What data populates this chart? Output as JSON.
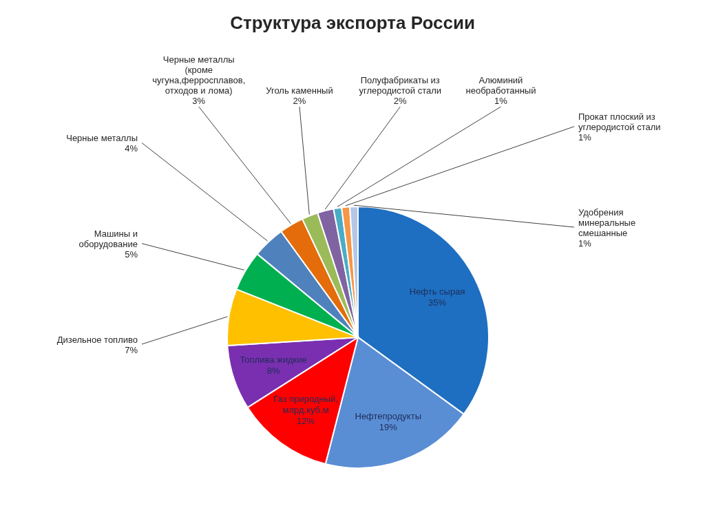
{
  "chart_data": {
    "type": "pie",
    "title": "Структура экспорта России",
    "categories": [
      "Нефть сырая",
      "Нефтепродукты",
      "Газ природный, млрд.куб.м",
      "Топлива жидкие",
      "Дизельное топливо",
      "Машины и оборудование",
      "Черные металлы",
      "Черные металлы (кроме чугуна,ферросплавов, отходов и лома)",
      "Уголь каменный",
      "Полуфабрикаты из углеродистой стали",
      "Алюминий необработанный",
      "Прокат плоский из углеродистой стали",
      "Удобрения минеральные смешанные"
    ],
    "values": [
      35,
      19,
      12,
      8,
      7,
      5,
      4,
      3,
      2,
      2,
      1,
      1,
      1
    ],
    "colors": [
      "#1e6fc1",
      "#5a8ed4",
      "#ff0000",
      "#7a2fb0",
      "#ffc000",
      "#00b050",
      "#4f81bd",
      "#e46c0a",
      "#9bbb59",
      "#8064a2",
      "#4bacc6",
      "#f79646",
      "#b4c7e7"
    ],
    "value_labels": [
      "35%",
      "19%",
      "12%",
      "8%",
      "7%",
      "5%",
      "4%",
      "3%",
      "2%",
      "2%",
      "1%",
      "1%",
      "1%"
    ]
  }
}
